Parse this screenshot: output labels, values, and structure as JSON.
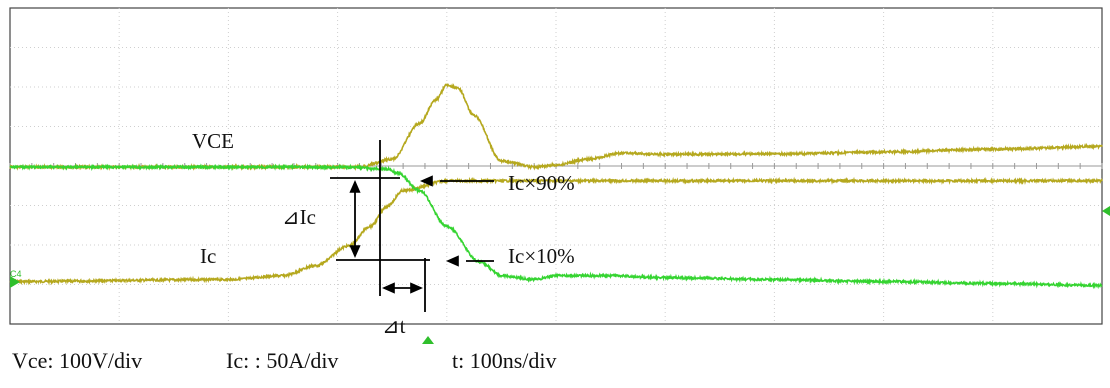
{
  "chart_data": {
    "type": "line",
    "title": "",
    "xlabel": "",
    "ylabel": "",
    "grid": true,
    "grid_divisions": {
      "x": 10,
      "y": 8
    },
    "series": [
      {
        "name": "VCE",
        "color": "#b5a81e",
        "x": [
          0,
          2.0,
          3.2,
          3.5,
          3.75,
          3.9,
          4.0,
          4.1,
          4.25,
          4.5,
          4.8,
          5.0,
          5.3,
          5.6,
          6.0,
          7.0,
          8.0,
          9.0,
          10.0
        ],
        "y": [
          0,
          0,
          0,
          0.2,
          1.1,
          1.7,
          2.08,
          2.0,
          1.3,
          0.15,
          0.0,
          0.05,
          0.2,
          0.35,
          0.32,
          0.33,
          0.38,
          0.45,
          0.52
        ]
      },
      {
        "name": "Ic",
        "color": "#35d431",
        "x": [
          0,
          3.0,
          3.45,
          3.55,
          3.75,
          4.0,
          4.3,
          4.5,
          4.8,
          5.0,
          5.5,
          6.0,
          7.0,
          8.0,
          9.0,
          10.0
        ],
        "y": [
          0,
          0,
          -0.05,
          -0.15,
          -0.6,
          -1.5,
          -2.4,
          -2.75,
          -2.85,
          -2.75,
          -2.75,
          -2.8,
          -2.85,
          -2.9,
          -2.95,
          -3.0
        ]
      },
      {
        "name": "Ic (lower trace)",
        "color": "#b5a81e",
        "x": [
          0,
          2.0,
          2.5,
          2.8,
          3.1,
          3.3,
          3.45,
          3.6,
          4.0,
          10.0
        ],
        "y": [
          -2.9,
          -2.85,
          -2.75,
          -2.5,
          -2.0,
          -1.5,
          -1.0,
          -0.6,
          -0.35,
          -0.35
        ]
      }
    ],
    "trace_labels": {
      "vce": "VCE",
      "ic": "Ic"
    },
    "annotations": {
      "ic90": "Ic×90%",
      "ic10": "Ic×10%",
      "delta_ic": "⊿Ic",
      "delta_t": "⊿t",
      "channel_tag": "C4"
    },
    "scales": {
      "vce": "Vce: 100V/div",
      "ic": "Ic: : 50A/div",
      "t": "t: 100ns/div"
    }
  }
}
